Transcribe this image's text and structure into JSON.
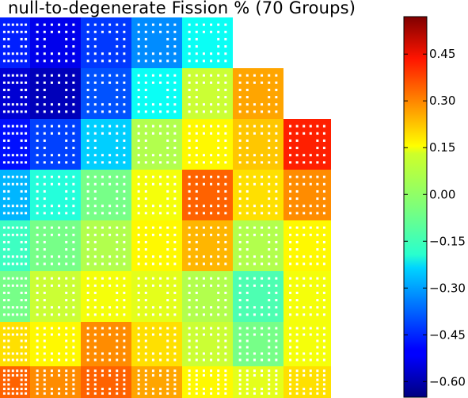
{
  "chart_data": {
    "type": "heatmap",
    "title": "null-to-degenerate Fission % (70 Groups)",
    "colorbar": {
      "colormap": "jet",
      "range": [
        -0.65,
        0.57
      ],
      "ticks": [
        0.45,
        0.3,
        0.15,
        0.0,
        -0.15,
        -0.3,
        -0.45,
        -0.6
      ],
      "tick_labels": [
        "0.45",
        "0.30",
        "0.15",
        "0.00",
        "−0.15",
        "−0.30",
        "−0.45",
        "−0.60"
      ]
    },
    "grid": false,
    "rows": [
      [
        -0.46,
        -0.52,
        -0.43,
        -0.33,
        -0.18,
        null,
        null
      ],
      [
        -0.55,
        -0.58,
        -0.4,
        -0.18,
        0.05,
        0.22,
        null
      ],
      [
        -0.48,
        -0.42,
        -0.25,
        0.02,
        0.12,
        0.18,
        0.38
      ],
      [
        -0.28,
        -0.15,
        -0.05,
        0.1,
        0.3,
        0.15,
        0.25
      ],
      [
        -0.12,
        -0.05,
        0.02,
        0.12,
        0.2,
        0.02,
        0.12
      ],
      [
        -0.05,
        0.05,
        0.1,
        0.08,
        0.02,
        -0.1,
        0.1
      ],
      [
        0.15,
        0.12,
        0.25,
        0.15,
        0.05,
        -0.05,
        0.1
      ],
      [
        0.3,
        0.25,
        0.3,
        0.22,
        0.12,
        0.08,
        0.15
      ]
    ]
  }
}
